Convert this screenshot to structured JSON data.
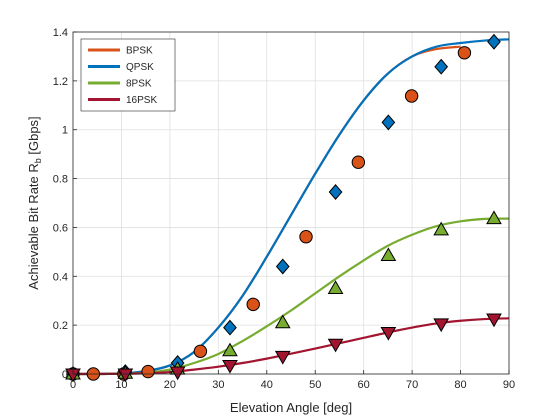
{
  "chart_data": {
    "type": "line",
    "xlabel": "Elevation Angle [deg]",
    "ylabel_main": "Achievable Bit Rate R",
    "ylabel_sub": "b",
    "ylabel_unit": " [Gbps]",
    "xlim": [
      0,
      90
    ],
    "ylim": [
      0,
      1.4
    ],
    "xticks": [
      0,
      10,
      20,
      30,
      40,
      50,
      60,
      70,
      80,
      90
    ],
    "yticks": [
      0,
      0.2,
      0.4,
      0.6,
      0.8,
      1,
      1.2,
      1.4
    ],
    "grid": true,
    "legend_position": "top-left",
    "series": [
      {
        "name": "BPSK",
        "color": "#d95319",
        "marker": "circle",
        "curve": [
          [
            0,
            0
          ],
          [
            5,
            0
          ],
          [
            10,
            0.002
          ],
          [
            15,
            0.012
          ],
          [
            20,
            0.035
          ],
          [
            25,
            0.09
          ],
          [
            30,
            0.19
          ],
          [
            35,
            0.32
          ],
          [
            40,
            0.48
          ],
          [
            45,
            0.65
          ],
          [
            50,
            0.82
          ],
          [
            55,
            0.98
          ],
          [
            60,
            1.12
          ],
          [
            65,
            1.23
          ],
          [
            70,
            1.3
          ],
          [
            75,
            1.33
          ],
          [
            80,
            1.34
          ]
        ],
        "markers": [
          [
            0,
            0
          ],
          [
            4.2,
            0
          ],
          [
            10.5,
            0
          ],
          [
            15.5,
            0.01
          ],
          [
            26.3,
            0.093
          ],
          [
            37.2,
            0.285
          ],
          [
            48.1,
            0.562
          ],
          [
            58.9,
            0.867
          ],
          [
            69.9,
            1.138
          ],
          [
            80.8,
            1.315
          ]
        ]
      },
      {
        "name": "QPSK",
        "color": "#0072bd",
        "marker": "diamond",
        "curve": [
          [
            0,
            0
          ],
          [
            5,
            0
          ],
          [
            10,
            0.002
          ],
          [
            15,
            0.012
          ],
          [
            20,
            0.035
          ],
          [
            25,
            0.09
          ],
          [
            30,
            0.19
          ],
          [
            35,
            0.32
          ],
          [
            40,
            0.48
          ],
          [
            45,
            0.65
          ],
          [
            50,
            0.82
          ],
          [
            55,
            0.98
          ],
          [
            60,
            1.12
          ],
          [
            65,
            1.23
          ],
          [
            70,
            1.3
          ],
          [
            75,
            1.34
          ],
          [
            80,
            1.355
          ],
          [
            85,
            1.365
          ],
          [
            90,
            1.37
          ]
        ],
        "markers": [
          [
            0,
            0
          ],
          [
            10.8,
            0.008
          ],
          [
            21.6,
            0.045
          ],
          [
            32.4,
            0.19
          ],
          [
            43.3,
            0.44
          ],
          [
            54.2,
            0.745
          ],
          [
            65.1,
            1.03
          ],
          [
            76,
            1.258
          ],
          [
            86.9,
            1.36
          ]
        ]
      },
      {
        "name": "8PSK",
        "color": "#77ac30",
        "marker": "triangle-up",
        "curve": [
          [
            0,
            0
          ],
          [
            10,
            0.001
          ],
          [
            15,
            0.005
          ],
          [
            20,
            0.018
          ],
          [
            25,
            0.045
          ],
          [
            30,
            0.082
          ],
          [
            35,
            0.135
          ],
          [
            40,
            0.195
          ],
          [
            45,
            0.26
          ],
          [
            50,
            0.33
          ],
          [
            55,
            0.4
          ],
          [
            60,
            0.465
          ],
          [
            65,
            0.525
          ],
          [
            70,
            0.57
          ],
          [
            75,
            0.605
          ],
          [
            80,
            0.625
          ],
          [
            85,
            0.635
          ],
          [
            90,
            0.636
          ]
        ],
        "markers": [
          [
            0,
            0
          ],
          [
            10.8,
            0.003
          ],
          [
            21.6,
            0.02
          ],
          [
            32.4,
            0.095
          ],
          [
            43.3,
            0.21
          ],
          [
            54.2,
            0.35
          ],
          [
            65.1,
            0.485
          ],
          [
            76,
            0.59
          ],
          [
            86.9,
            0.636
          ]
        ]
      },
      {
        "name": "16PSK",
        "color": "#a2142f",
        "marker": "triangle-down",
        "curve": [
          [
            0,
            0
          ],
          [
            10,
            0.001
          ],
          [
            15,
            0.003
          ],
          [
            20,
            0.008
          ],
          [
            25,
            0.018
          ],
          [
            30,
            0.03
          ],
          [
            35,
            0.045
          ],
          [
            40,
            0.063
          ],
          [
            45,
            0.083
          ],
          [
            50,
            0.104
          ],
          [
            55,
            0.126
          ],
          [
            60,
            0.148
          ],
          [
            65,
            0.17
          ],
          [
            70,
            0.19
          ],
          [
            75,
            0.207
          ],
          [
            80,
            0.218
          ],
          [
            85,
            0.225
          ],
          [
            90,
            0.228
          ]
        ],
        "markers": [
          [
            0,
            0
          ],
          [
            10.8,
            0
          ],
          [
            21.6,
            0.008
          ],
          [
            32.4,
            0.035
          ],
          [
            43.3,
            0.072
          ],
          [
            54.2,
            0.122
          ],
          [
            65.1,
            0.17
          ],
          [
            76,
            0.205
          ],
          [
            86.9,
            0.225
          ]
        ]
      }
    ]
  }
}
